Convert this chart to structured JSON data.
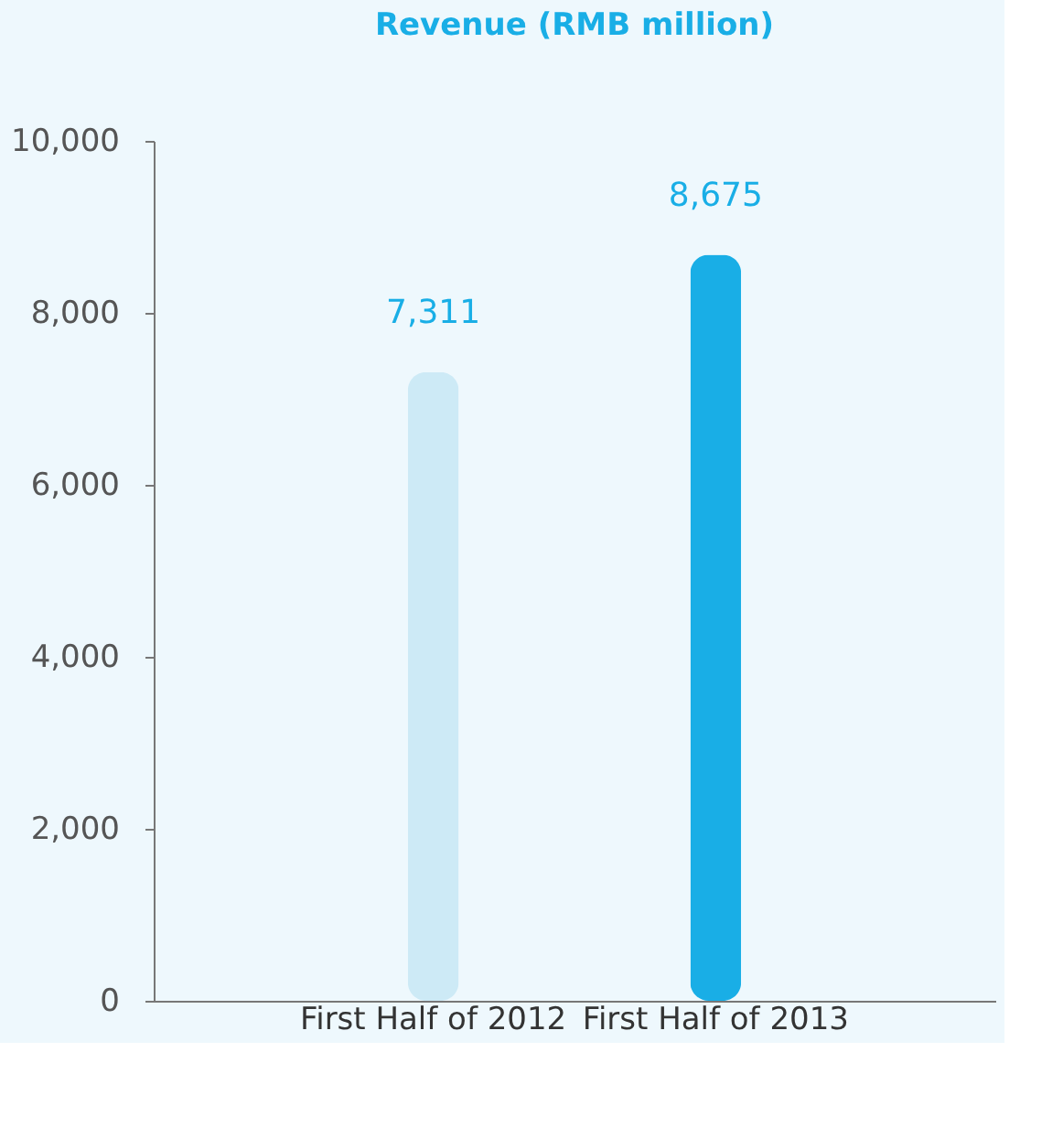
{
  "chart_data": {
    "type": "bar",
    "title": "Revenue (RMB million)",
    "categories": [
      "First Half of 2012",
      "First Half of 2013"
    ],
    "values": [
      7311,
      8675
    ],
    "colors": [
      "#cdeaf6",
      "#19aee6"
    ],
    "value_labels": [
      "7,311",
      "8,675"
    ],
    "ylim": [
      0,
      10000
    ],
    "yticks": [
      0,
      {
        "value": 2000,
        "label": "2,000"
      },
      {
        "value": 4000,
        "label": "4,000"
      },
      {
        "value": 6000,
        "label": "6,000"
      },
      {
        "value": 8000,
        "label": "8,000"
      },
      {
        "value": 10000,
        "label": "10,000"
      }
    ],
    "grid": false
  }
}
